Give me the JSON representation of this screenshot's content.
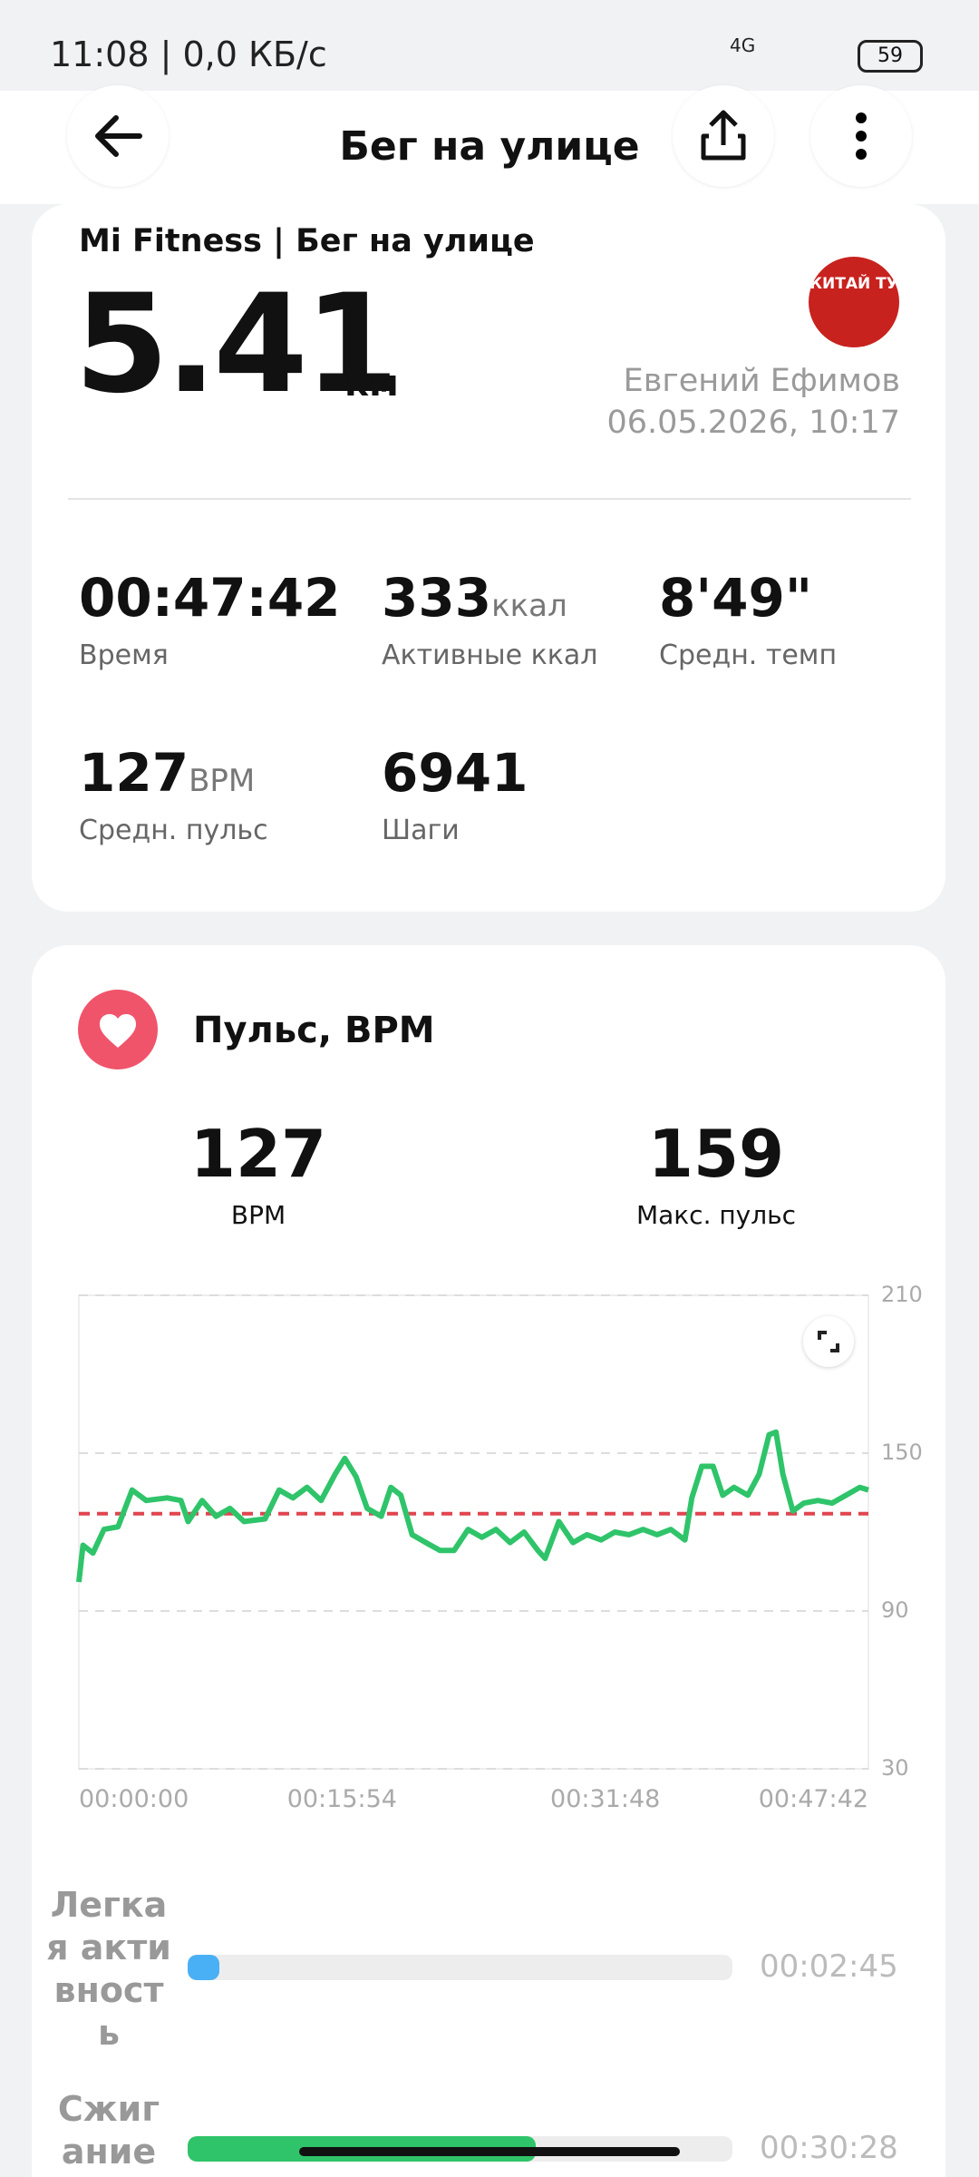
{
  "status_bar": {
    "time": "11:08 | 0,0 КБ/с",
    "network": "4G",
    "battery": "59"
  },
  "header": {
    "title": "Бег на улице"
  },
  "summary": {
    "source": "Mi Fitness | Бег на улице",
    "distance": "5.41",
    "distance_unit": "км",
    "avatar_text": "КИТАЙ ТУ",
    "user": "Евгений Ефимов",
    "datetime": "06.05.2026, 10:17",
    "stats": [
      {
        "value": "00:47:42",
        "label": "Время"
      },
      {
        "value": "333",
        "unit": "ккал",
        "label": "Активные ккал"
      },
      {
        "value": "8'49\"",
        "label": "Средн. темп"
      },
      {
        "value": "127",
        "unit": "BPM",
        "label": "Средн. пульс"
      },
      {
        "value": "6941",
        "label": "Шаги"
      }
    ]
  },
  "heart_rate": {
    "title": "Пульс, BPM",
    "average": {
      "value": 127,
      "label": "BPM"
    },
    "max": {
      "value": 159,
      "label": "Макс. пульс"
    },
    "chart": {
      "type": "line",
      "x": [
        0,
        15,
        51,
        91,
        142,
        193,
        244,
        320,
        370,
        396,
        447,
        497,
        548,
        599,
        675,
        726,
        776,
        827,
        878,
        929,
        964,
        1005,
        1045,
        1096,
        1131,
        1167,
        1208,
        1258,
        1309,
        1360,
        1411,
        1461,
        1512,
        1563,
        1614,
        1664,
        1690,
        1715,
        1740,
        1791,
        1842,
        1893,
        1943,
        1994,
        2045,
        2096,
        2146,
        2197,
        2222,
        2258,
        2299,
        2334,
        2375,
        2425,
        2466,
        2502,
        2527,
        2552,
        2588,
        2628,
        2679,
        2730,
        2781,
        2831,
        2862
      ],
      "series": [
        {
          "color": "#2fc46a",
          "values": [
            101,
            115,
            112,
            121,
            122,
            136,
            132,
            133,
            132,
            124,
            132,
            126,
            129,
            124,
            125,
            136,
            133,
            137,
            132,
            142,
            148,
            141,
            129,
            126,
            137,
            134,
            119,
            116,
            113,
            113,
            121,
            118,
            121,
            116,
            120,
            113,
            110,
            117,
            124,
            116,
            119,
            117,
            120,
            119,
            121,
            119,
            121,
            117,
            133,
            145,
            145,
            134,
            137,
            134,
            142,
            157,
            158,
            142,
            128,
            131,
            132,
            131,
            134,
            137,
            136
          ]
        }
      ],
      "average_line_color": "#e0454f",
      "xlim": [
        0,
        2862
      ],
      "xticks": [
        {
          "value": 0,
          "label": "00:00:00"
        },
        {
          "value": 954,
          "label": "00:15:54"
        },
        {
          "value": 1908,
          "label": "00:31:48"
        },
        {
          "value": 2862,
          "label": "00:47:42"
        }
      ],
      "ylim": [
        30,
        210
      ],
      "yticks": [
        30,
        90,
        150,
        210
      ],
      "grid": true
    },
    "zones": [
      {
        "name": "Легкая активность",
        "color": "#4ab0f5",
        "duration": {
          "value": 165,
          "label": "00:02:45"
        }
      },
      {
        "name": "Сжигание",
        "color": "#2fc46a",
        "duration": {
          "value": 1828,
          "label": "00:30:28"
        }
      }
    ]
  }
}
